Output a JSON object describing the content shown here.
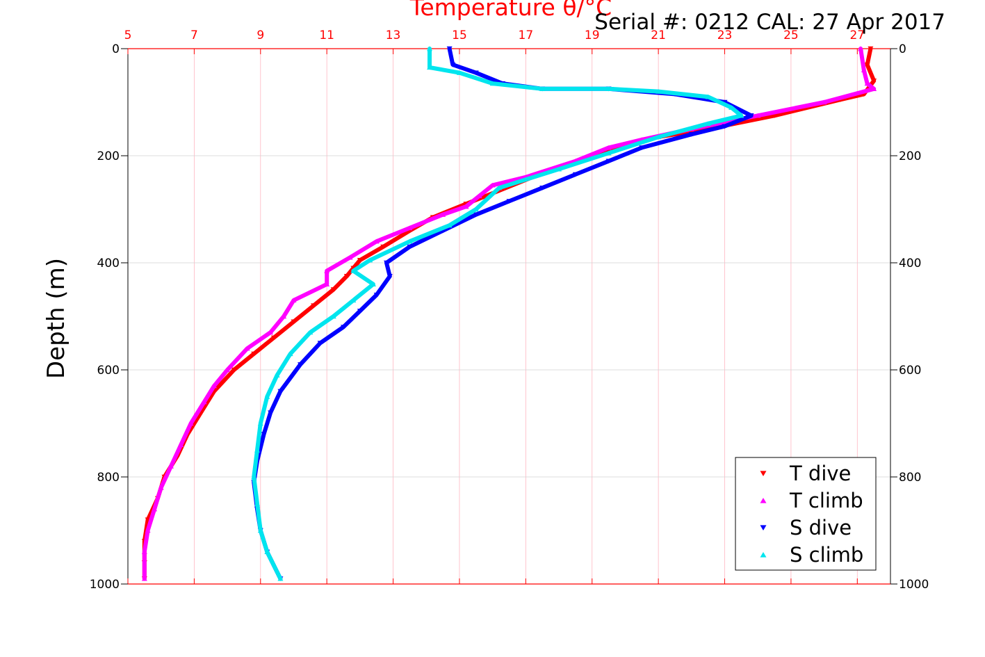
{
  "chart_data": {
    "type": "scatter",
    "title": "Temperature θ/°C",
    "header_text": "Serial #: 0212  CAL: 27 Apr 2017",
    "xlabel": "Temperature θ/°C",
    "ylabel": "Depth (m)",
    "xlim": [
      5,
      28
    ],
    "ylim": [
      0,
      1000
    ],
    "y_reversed": true,
    "x_axis_position": "top",
    "x_ticks": [
      5,
      7,
      9,
      11,
      13,
      15,
      17,
      19,
      21,
      23,
      25,
      27
    ],
    "y_ticks": [
      0,
      200,
      400,
      600,
      800,
      1000
    ],
    "grid": true,
    "legend_position": "bottom-right",
    "colors": {
      "axis_x": "#ff0000",
      "axis_y": "#000000",
      "grid_x": "#ffb6c1",
      "grid_y": "#d3d3d3"
    },
    "series": [
      {
        "name": "T dive",
        "color": "#ff0000",
        "marker": "triangle-down",
        "points": [
          [
            27.4,
            0
          ],
          [
            27.3,
            30
          ],
          [
            27.5,
            60
          ],
          [
            27.2,
            85
          ],
          [
            26.5,
            95
          ],
          [
            24.5,
            125
          ],
          [
            22.5,
            150
          ],
          [
            21.0,
            165
          ],
          [
            20.0,
            180
          ],
          [
            19.0,
            200
          ],
          [
            18.2,
            220
          ],
          [
            17.2,
            240
          ],
          [
            16.2,
            265
          ],
          [
            15.2,
            290
          ],
          [
            14.2,
            315
          ],
          [
            13.5,
            340
          ],
          [
            12.7,
            370
          ],
          [
            12.0,
            395
          ],
          [
            11.8,
            410
          ],
          [
            11.6,
            425
          ],
          [
            11.2,
            450
          ],
          [
            10.6,
            480
          ],
          [
            10.0,
            510
          ],
          [
            9.4,
            540
          ],
          [
            8.8,
            570
          ],
          [
            8.2,
            600
          ],
          [
            7.6,
            640
          ],
          [
            7.2,
            680
          ],
          [
            6.8,
            720
          ],
          [
            6.5,
            760
          ],
          [
            6.1,
            800
          ],
          [
            5.9,
            840
          ],
          [
            5.6,
            880
          ],
          [
            5.5,
            920
          ],
          [
            5.5,
            960
          ],
          [
            5.5,
            990
          ]
        ]
      },
      {
        "name": "T climb",
        "color": "#ff00ff",
        "marker": "triangle-up",
        "points": [
          [
            27.1,
            0
          ],
          [
            27.2,
            40
          ],
          [
            27.3,
            65
          ],
          [
            27.5,
            75
          ],
          [
            26.0,
            100
          ],
          [
            24.0,
            125
          ],
          [
            22.0,
            150
          ],
          [
            20.5,
            170
          ],
          [
            19.5,
            185
          ],
          [
            18.5,
            210
          ],
          [
            17.0,
            240
          ],
          [
            16.0,
            255
          ],
          [
            15.6,
            275
          ],
          [
            15.2,
            295
          ],
          [
            14.5,
            310
          ],
          [
            13.5,
            335
          ],
          [
            12.5,
            360
          ],
          [
            11.7,
            390
          ],
          [
            11.0,
            415
          ],
          [
            11.0,
            440
          ],
          [
            10.0,
            470
          ],
          [
            9.7,
            500
          ],
          [
            9.3,
            530
          ],
          [
            8.6,
            560
          ],
          [
            8.0,
            600
          ],
          [
            7.6,
            630
          ],
          [
            7.3,
            660
          ],
          [
            6.9,
            700
          ],
          [
            6.6,
            740
          ],
          [
            6.3,
            780
          ],
          [
            6.0,
            820
          ],
          [
            5.8,
            860
          ],
          [
            5.6,
            900
          ],
          [
            5.5,
            940
          ],
          [
            5.5,
            990
          ]
        ]
      },
      {
        "name": "S dive",
        "color": "#0000ff",
        "marker": "triangle-down",
        "points": [
          [
            14.7,
            0
          ],
          [
            14.8,
            30
          ],
          [
            15.5,
            45
          ],
          [
            16.3,
            65
          ],
          [
            17.5,
            75
          ],
          [
            19.5,
            75
          ],
          [
            21.5,
            85
          ],
          [
            23.0,
            100
          ],
          [
            23.8,
            125
          ],
          [
            23.0,
            145
          ],
          [
            22.0,
            160
          ],
          [
            20.5,
            185
          ],
          [
            19.5,
            210
          ],
          [
            18.5,
            235
          ],
          [
            17.5,
            260
          ],
          [
            16.5,
            285
          ],
          [
            15.5,
            310
          ],
          [
            14.5,
            340
          ],
          [
            13.5,
            370
          ],
          [
            12.8,
            400
          ],
          [
            12.9,
            425
          ],
          [
            12.5,
            460
          ],
          [
            12.0,
            490
          ],
          [
            11.5,
            520
          ],
          [
            10.8,
            550
          ],
          [
            10.2,
            590
          ],
          [
            9.6,
            640
          ],
          [
            9.3,
            680
          ],
          [
            9.1,
            720
          ],
          [
            8.9,
            770
          ],
          [
            8.8,
            810
          ],
          [
            8.9,
            860
          ],
          [
            9.0,
            900
          ],
          [
            9.2,
            940
          ],
          [
            9.6,
            990
          ]
        ]
      },
      {
        "name": "S climb",
        "color": "#00e5ee",
        "marker": "triangle-up",
        "points": [
          [
            14.1,
            0
          ],
          [
            14.1,
            35
          ],
          [
            15.0,
            45
          ],
          [
            16.0,
            65
          ],
          [
            17.5,
            75
          ],
          [
            19.5,
            75
          ],
          [
            21.0,
            80
          ],
          [
            22.5,
            90
          ],
          [
            23.2,
            110
          ],
          [
            23.5,
            125
          ],
          [
            22.5,
            140
          ],
          [
            21.0,
            165
          ],
          [
            19.5,
            195
          ],
          [
            18.0,
            225
          ],
          [
            16.2,
            260
          ],
          [
            15.5,
            300
          ],
          [
            14.7,
            330
          ],
          [
            13.5,
            360
          ],
          [
            12.3,
            395
          ],
          [
            11.8,
            415
          ],
          [
            12.4,
            440
          ],
          [
            11.8,
            470
          ],
          [
            11.2,
            500
          ],
          [
            10.5,
            530
          ],
          [
            9.9,
            570
          ],
          [
            9.5,
            610
          ],
          [
            9.2,
            650
          ],
          [
            9.0,
            700
          ],
          [
            8.9,
            750
          ],
          [
            8.8,
            800
          ],
          [
            8.9,
            850
          ],
          [
            9.0,
            900
          ],
          [
            9.2,
            940
          ],
          [
            9.6,
            990
          ]
        ]
      }
    ]
  }
}
